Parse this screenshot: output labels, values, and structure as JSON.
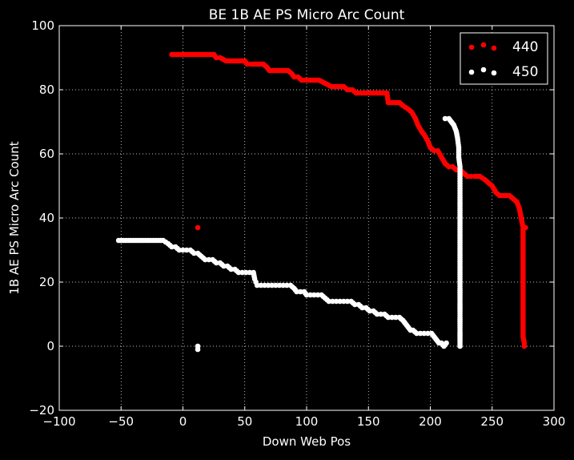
{
  "chart_data": {
    "type": "scatter",
    "title": "BE 1B AE PS Micro Arc Count",
    "xlabel": "Down Web Pos",
    "ylabel": "1B AE PS Micro Arc Count",
    "xlim": [
      -100,
      300
    ],
    "ylim": [
      -20,
      100
    ],
    "xticks": [
      "−100",
      "−50",
      "0",
      "50",
      "100",
      "150",
      "200",
      "250",
      "300"
    ],
    "yticks": [
      "−20",
      "0",
      "20",
      "40",
      "60",
      "80",
      "100"
    ],
    "grid": true,
    "legend_position": "top-right",
    "series": [
      {
        "name": "440",
        "color": "#ff0000",
        "points": [
          [
            -9,
            91
          ],
          [
            -5,
            91
          ],
          [
            0,
            91
          ],
          [
            5,
            91
          ],
          [
            10,
            91
          ],
          [
            15,
            91
          ],
          [
            20,
            91
          ],
          [
            25,
            91
          ],
          [
            27,
            90
          ],
          [
            30,
            90
          ],
          [
            35,
            89
          ],
          [
            40,
            89
          ],
          [
            45,
            89
          ],
          [
            50,
            89
          ],
          [
            52,
            88
          ],
          [
            55,
            88
          ],
          [
            60,
            88
          ],
          [
            65,
            88
          ],
          [
            68,
            87
          ],
          [
            70,
            86
          ],
          [
            75,
            86
          ],
          [
            80,
            86
          ],
          [
            85,
            86
          ],
          [
            88,
            85
          ],
          [
            90,
            84
          ],
          [
            93,
            84
          ],
          [
            96,
            83
          ],
          [
            100,
            83
          ],
          [
            105,
            83
          ],
          [
            110,
            83
          ],
          [
            115,
            82
          ],
          [
            120,
            81
          ],
          [
            125,
            81
          ],
          [
            130,
            81
          ],
          [
            133,
            80
          ],
          [
            137,
            80
          ],
          [
            140,
            79
          ],
          [
            145,
            79
          ],
          [
            150,
            79
          ],
          [
            155,
            79
          ],
          [
            160,
            79
          ],
          [
            165,
            79
          ],
          [
            166,
            76
          ],
          [
            170,
            76
          ],
          [
            175,
            76
          ],
          [
            178,
            75
          ],
          [
            182,
            74
          ],
          [
            185,
            73
          ],
          [
            188,
            71
          ],
          [
            190,
            69
          ],
          [
            193,
            67
          ],
          [
            195,
            66
          ],
          [
            198,
            64
          ],
          [
            200,
            62
          ],
          [
            203,
            61
          ],
          [
            206,
            61
          ],
          [
            209,
            59
          ],
          [
            212,
            57
          ],
          [
            215,
            56
          ],
          [
            218,
            56
          ],
          [
            221,
            55
          ],
          [
            224,
            55
          ],
          [
            227,
            54
          ],
          [
            230,
            53
          ],
          [
            233,
            53
          ],
          [
            236,
            53
          ],
          [
            240,
            53
          ],
          [
            244,
            52
          ],
          [
            247,
            51
          ],
          [
            250,
            50
          ],
          [
            253,
            48
          ],
          [
            256,
            47
          ],
          [
            260,
            47
          ],
          [
            264,
            47
          ],
          [
            267,
            46
          ],
          [
            270,
            45
          ],
          [
            272,
            43
          ],
          [
            273,
            41
          ],
          [
            274,
            39
          ],
          [
            275,
            37
          ],
          [
            275,
            35
          ],
          [
            275,
            33
          ],
          [
            275,
            31
          ],
          [
            275,
            29
          ],
          [
            275,
            27
          ],
          [
            275,
            25
          ],
          [
            275,
            23
          ],
          [
            275,
            21
          ],
          [
            275,
            19
          ],
          [
            275,
            17
          ],
          [
            275,
            15
          ],
          [
            275,
            13
          ],
          [
            275,
            11
          ],
          [
            275,
            9
          ],
          [
            275,
            7
          ],
          [
            275,
            5
          ],
          [
            275,
            3
          ],
          [
            276,
            1
          ],
          [
            276,
            0
          ],
          [
            277,
            37
          ],
          [
            12,
            37
          ]
        ]
      },
      {
        "name": "450",
        "color": "#ffffff",
        "points": [
          [
            -52,
            33
          ],
          [
            -48,
            33
          ],
          [
            -44,
            33
          ],
          [
            -40,
            33
          ],
          [
            -36,
            33
          ],
          [
            -32,
            33
          ],
          [
            -28,
            33
          ],
          [
            -24,
            33
          ],
          [
            -20,
            33
          ],
          [
            -16,
            33
          ],
          [
            -12,
            32
          ],
          [
            -9,
            31
          ],
          [
            -6,
            31
          ],
          [
            -3,
            30
          ],
          [
            0,
            30
          ],
          [
            3,
            30
          ],
          [
            6,
            30
          ],
          [
            9,
            29
          ],
          [
            12,
            29
          ],
          [
            15,
            28
          ],
          [
            18,
            27
          ],
          [
            21,
            27
          ],
          [
            24,
            27
          ],
          [
            27,
            26
          ],
          [
            30,
            26
          ],
          [
            33,
            25
          ],
          [
            36,
            25
          ],
          [
            39,
            24
          ],
          [
            42,
            24
          ],
          [
            45,
            23
          ],
          [
            48,
            23
          ],
          [
            51,
            23
          ],
          [
            54,
            23
          ],
          [
            57,
            23
          ],
          [
            58,
            21
          ],
          [
            59,
            20
          ],
          [
            60,
            19
          ],
          [
            63,
            19
          ],
          [
            66,
            19
          ],
          [
            69,
            19
          ],
          [
            72,
            19
          ],
          [
            75,
            19
          ],
          [
            78,
            19
          ],
          [
            81,
            19
          ],
          [
            84,
            19
          ],
          [
            87,
            19
          ],
          [
            90,
            18
          ],
          [
            92,
            17
          ],
          [
            95,
            17
          ],
          [
            98,
            17
          ],
          [
            100,
            16
          ],
          [
            103,
            16
          ],
          [
            106,
            16
          ],
          [
            109,
            16
          ],
          [
            112,
            16
          ],
          [
            115,
            15
          ],
          [
            118,
            14
          ],
          [
            121,
            14
          ],
          [
            124,
            14
          ],
          [
            127,
            14
          ],
          [
            130,
            14
          ],
          [
            133,
            14
          ],
          [
            136,
            14
          ],
          [
            139,
            13
          ],
          [
            142,
            13
          ],
          [
            145,
            12
          ],
          [
            148,
            12
          ],
          [
            151,
            11
          ],
          [
            154,
            11
          ],
          [
            157,
            10
          ],
          [
            160,
            10
          ],
          [
            163,
            10
          ],
          [
            166,
            9
          ],
          [
            169,
            9
          ],
          [
            172,
            9
          ],
          [
            175,
            9
          ],
          [
            178,
            8
          ],
          [
            180,
            7
          ],
          [
            182,
            6
          ],
          [
            184,
            5
          ],
          [
            186,
            5
          ],
          [
            189,
            4
          ],
          [
            192,
            4
          ],
          [
            195,
            4
          ],
          [
            198,
            4
          ],
          [
            201,
            4
          ],
          [
            203,
            3
          ],
          [
            205,
            2
          ],
          [
            207,
            1
          ],
          [
            209,
            1
          ],
          [
            211,
            0
          ],
          [
            213,
            1
          ],
          [
            212,
            71
          ],
          [
            215,
            71
          ],
          [
            217,
            70
          ],
          [
            219,
            69
          ],
          [
            221,
            67
          ],
          [
            222,
            65
          ],
          [
            223,
            62
          ],
          [
            223,
            59
          ],
          [
            224,
            56
          ],
          [
            224,
            53
          ],
          [
            224,
            50
          ],
          [
            224,
            47
          ],
          [
            224,
            45
          ],
          [
            224,
            43
          ],
          [
            224,
            41
          ],
          [
            224,
            39
          ],
          [
            224,
            37
          ],
          [
            224,
            35
          ],
          [
            224,
            33
          ],
          [
            224,
            31
          ],
          [
            224,
            29
          ],
          [
            224,
            27
          ],
          [
            224,
            25
          ],
          [
            224,
            23
          ],
          [
            224,
            21
          ],
          [
            224,
            18
          ],
          [
            224,
            9
          ],
          [
            224,
            0
          ],
          [
            12,
            0
          ],
          [
            12,
            -1
          ]
        ]
      }
    ]
  }
}
